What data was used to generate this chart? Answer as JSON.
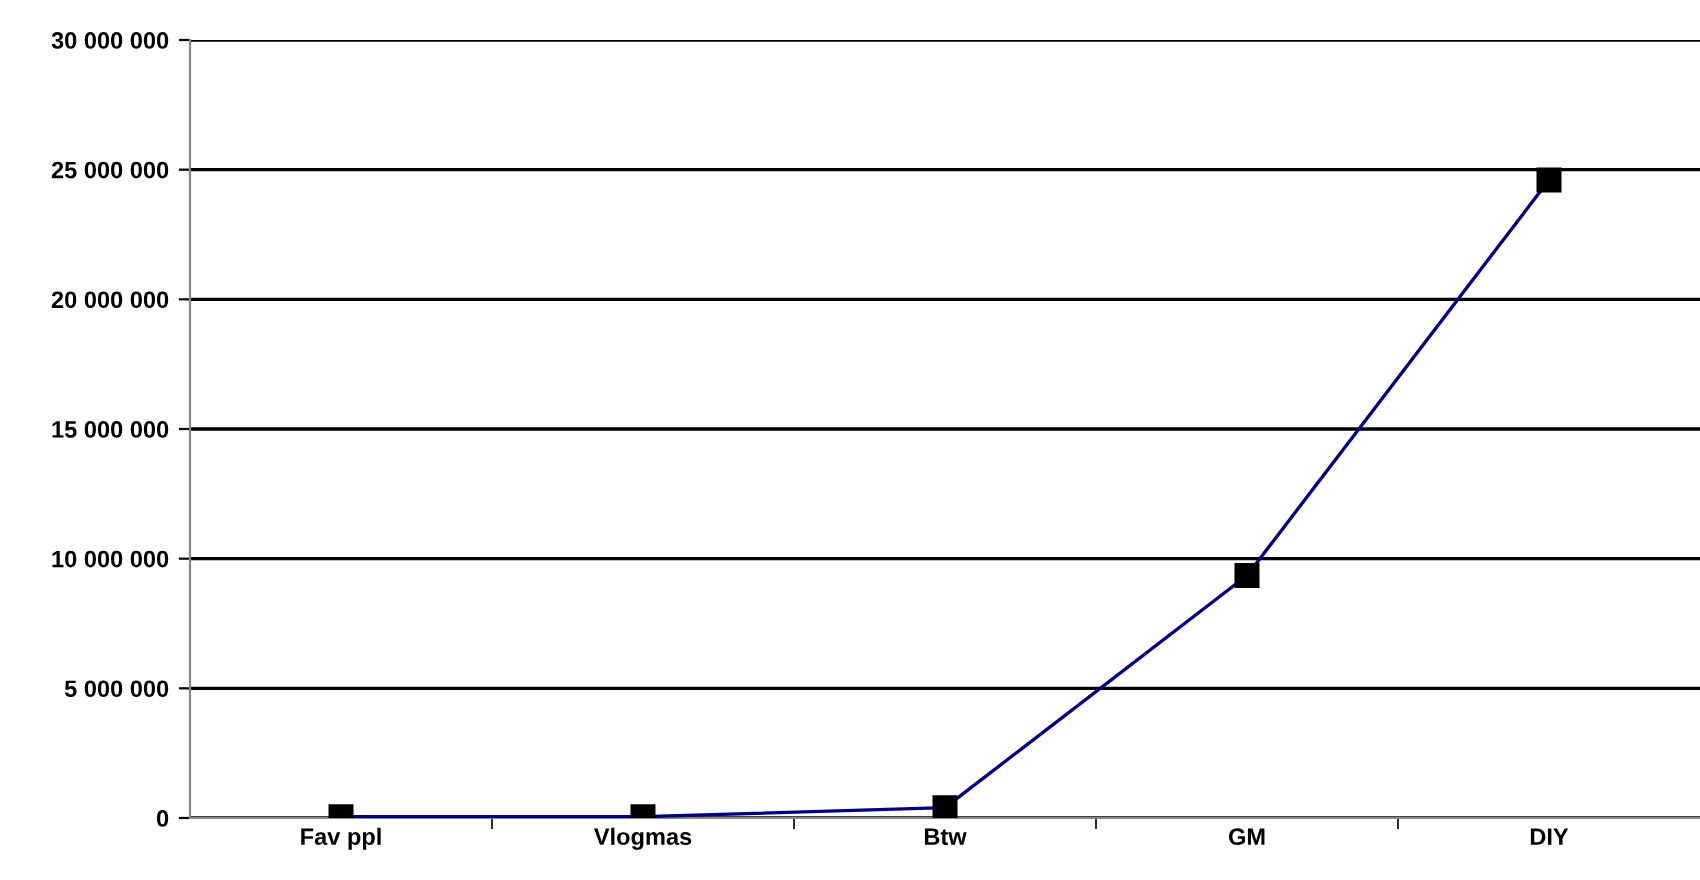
{
  "chart_data": {
    "type": "line",
    "categories": [
      "Fav ppl",
      "Vlogmas",
      "Btw",
      "GM",
      "DIY"
    ],
    "series": [
      {
        "color": "#000080",
        "values": [
          50000,
          50000,
          400000,
          9350000,
          24600000
        ]
      }
    ],
    "ylim": [
      0,
      30000000
    ],
    "yticks": [
      {
        "value": 0,
        "label": "0"
      },
      {
        "value": 5000000,
        "label": "5 000 000"
      },
      {
        "value": 10000000,
        "label": "10 000 000"
      },
      {
        "value": 15000000,
        "label": "15 000 000"
      },
      {
        "value": 20000000,
        "label": "20 000 000"
      },
      {
        "value": 25000000,
        "label": "25 000 000"
      },
      {
        "value": 30000000,
        "label": "30 000 000"
      }
    ],
    "grid": "y",
    "marker": "square",
    "line_style": "solid"
  }
}
